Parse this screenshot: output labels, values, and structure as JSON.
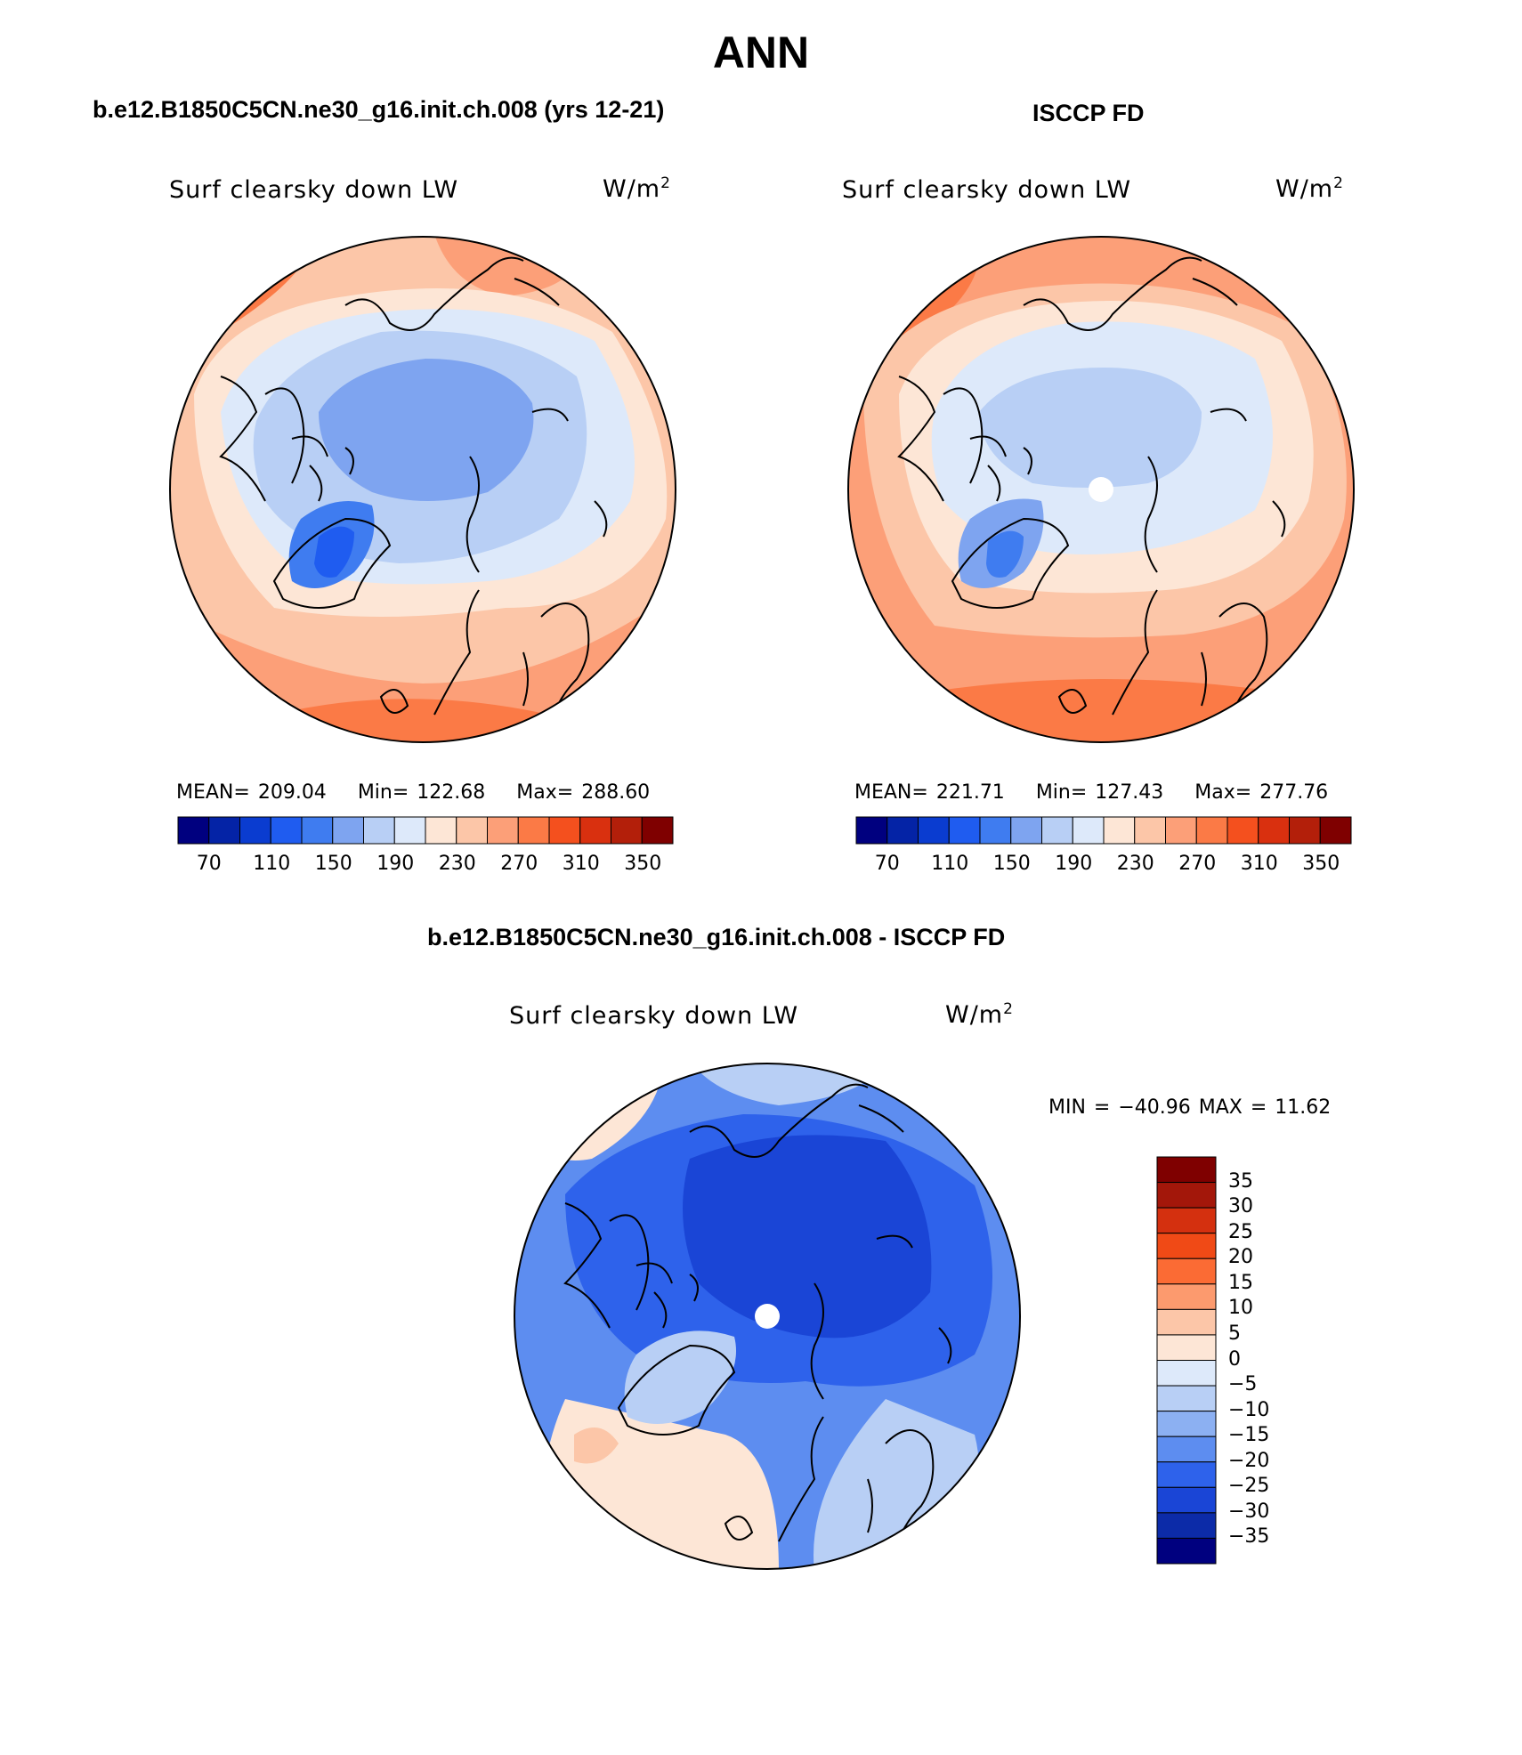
{
  "page": {
    "title": "ANN",
    "diff_title": "b.e12.B1850C5CN.ne30_g16.init.ch.008 - ISCCP FD"
  },
  "panels": [
    {
      "case_title": "b.e12.B1850C5CN.ne30_g16.init.ch.008 (yrs 12-21)",
      "variable": "Surf clearsky down LW",
      "units_base": "W/m",
      "units_exp": "2",
      "mean_label": "MEAN=",
      "mean_value": "209.04",
      "min_label": "Min=",
      "min_value": "122.68",
      "max_label": "Max=",
      "max_value": "288.60"
    },
    {
      "case_title": "ISCCP FD",
      "variable": "Surf clearsky down LW",
      "units_base": "W/m",
      "units_exp": "2",
      "mean_label": "MEAN=",
      "mean_value": "221.71",
      "min_label": "Min=",
      "min_value": "127.43",
      "max_label": "Max=",
      "max_value": "277.76"
    },
    {
      "variable": "Surf clearsky down LW",
      "units_base": "W/m",
      "units_exp": "2",
      "minmax_text": "MIN = −40.96 MAX =  11.62"
    }
  ],
  "colorbar_main": {
    "colors": [
      "#00007f",
      "#0423a6",
      "#0a3cd0",
      "#1f5cf0",
      "#3f7cf0",
      "#7ea4f0",
      "#b8cff5",
      "#dde9fa",
      "#fde6d6",
      "#fcc6a8",
      "#fc9f78",
      "#fb7a46",
      "#f4501e",
      "#d9300f",
      "#b31f0a",
      "#7f0000"
    ],
    "tick_labels": [
      "70",
      "110",
      "150",
      "190",
      "230",
      "270",
      "310",
      "350"
    ]
  },
  "colorbar_diff": {
    "colors": [
      "#7f0000",
      "#a3170a",
      "#d4300f",
      "#f04a16",
      "#fb6b34",
      "#fc9a6e",
      "#fcc6a8",
      "#fde6d6",
      "#dde9fa",
      "#b8cff5",
      "#8cb0f2",
      "#5d8df0",
      "#2e62eb",
      "#1a45d6",
      "#0c2ba8",
      "#00007f"
    ],
    "tick_labels": [
      "35",
      "30",
      "25",
      "20",
      "15",
      "10",
      "5",
      "0",
      "−5",
      "−10",
      "−15",
      "−20",
      "−25",
      "−30",
      "−35"
    ]
  },
  "map_colors": {
    "warm_strong": "#fb7a46",
    "warm_mid": "#fc9f78",
    "warm_light": "#fcc6a8",
    "warm_pale": "#fde6d6",
    "cool_pale": "#dde9fa",
    "cool_light": "#b8cff5",
    "cool_mid": "#7ea4f0",
    "cool_strong": "#3f7cf0",
    "cool_deep": "#1f5cf0",
    "diff_deep": "#1a45d6",
    "diff_mid": "#2e62eb",
    "diff_light": "#5d8df0"
  }
}
